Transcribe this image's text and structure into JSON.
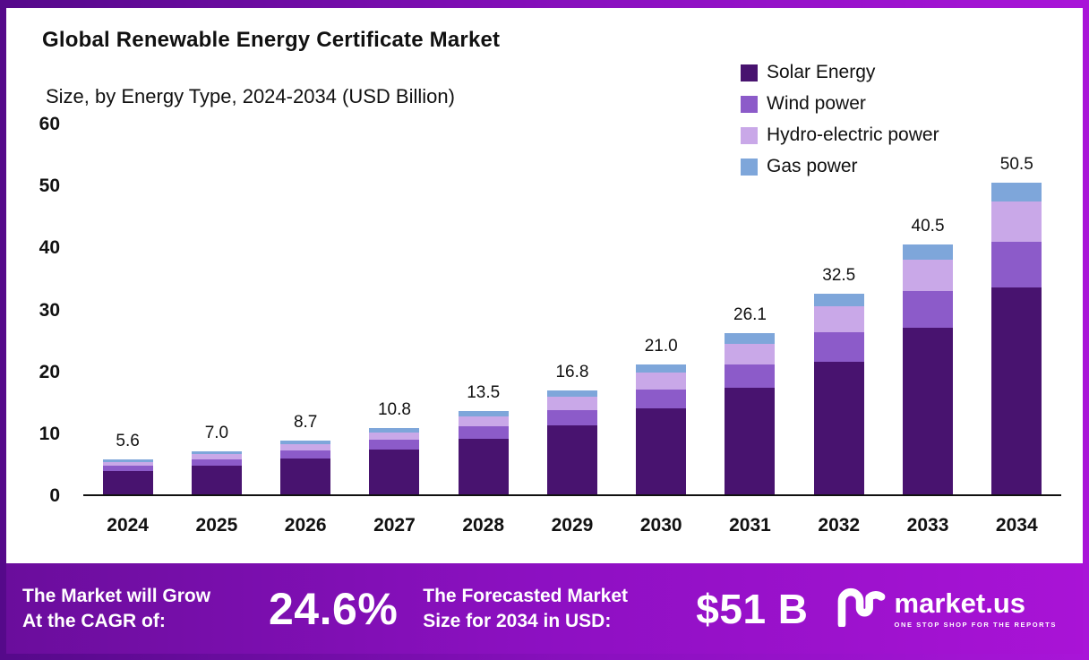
{
  "header": {
    "title": "Global Renewable Energy Certificate Market",
    "subtitle": "Size, by Energy Type, 2024-2034 (USD Billion)"
  },
  "chart_data": {
    "type": "bar",
    "stacked": true,
    "title": "Global Renewable Energy Certificate Market Size, by Energy Type, 2024-2034 (USD Billion)",
    "categories": [
      "2024",
      "2025",
      "2026",
      "2027",
      "2028",
      "2029",
      "2030",
      "2031",
      "2032",
      "2033",
      "2034"
    ],
    "series": [
      {
        "name": "Solar Energy",
        "color": "#48136f",
        "values": [
          3.8,
          4.7,
          5.8,
          7.2,
          9.0,
          11.2,
          14.0,
          17.3,
          21.5,
          27.0,
          33.5
        ]
      },
      {
        "name": "Wind power",
        "color": "#8c5bc9",
        "values": [
          0.8,
          1.0,
          1.3,
          1.6,
          2.0,
          2.4,
          3.0,
          3.7,
          4.8,
          6.0,
          7.5
        ]
      },
      {
        "name": "Hydro-electric power",
        "color": "#c9a8e8",
        "values": [
          0.7,
          0.9,
          1.1,
          1.3,
          1.7,
          2.2,
          2.7,
          3.4,
          4.2,
          5.0,
          6.5
        ]
      },
      {
        "name": "Gas power",
        "color": "#7ea6da",
        "values": [
          0.3,
          0.4,
          0.5,
          0.7,
          0.8,
          1.0,
          1.3,
          1.7,
          2.0,
          2.5,
          3.0
        ]
      }
    ],
    "totals": [
      5.6,
      7.0,
      8.7,
      10.8,
      13.5,
      16.8,
      21.0,
      26.1,
      32.5,
      40.5,
      50.5
    ],
    "ylim": [
      0,
      60
    ],
    "yticks": [
      0,
      10,
      20,
      30,
      40,
      50,
      60
    ],
    "grid": false,
    "legend_position": "top-right",
    "xlabel": "",
    "ylabel": ""
  },
  "banner": {
    "cagr_label": "The Market will Grow\nAt the CAGR of:",
    "cagr_value": "24.6%",
    "forecast_label": "The Forecasted Market\nSize for 2034 in USD:",
    "forecast_value": "$51 B",
    "brand_name": "market.us",
    "brand_tagline": "ONE STOP SHOP FOR THE REPORTS"
  }
}
